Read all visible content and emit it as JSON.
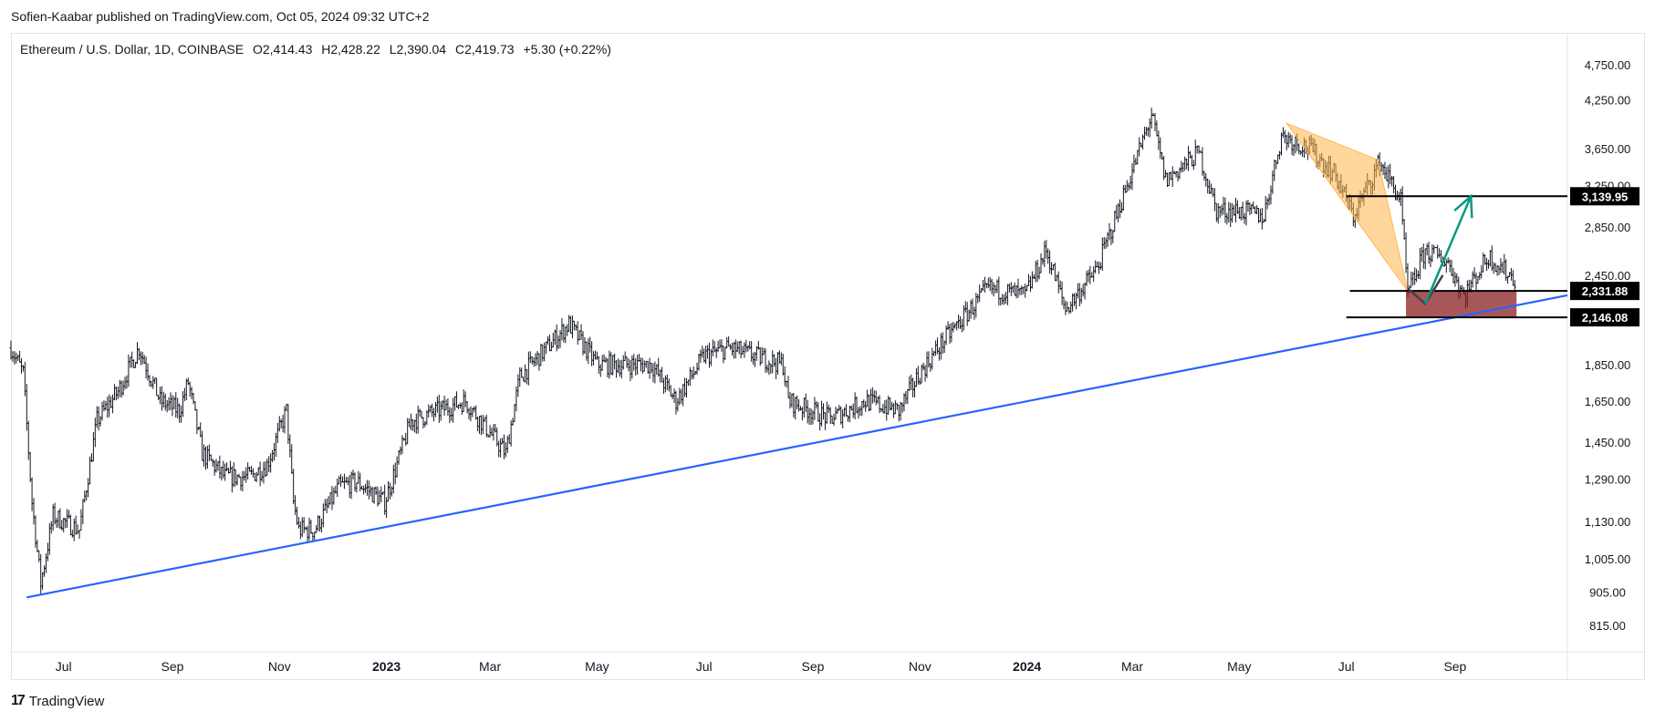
{
  "publisher_line": "Sofien-Kaabar published on TradingView.com, Oct 05, 2024 09:32 UTC+2",
  "footer": {
    "brand": "TradingView",
    "icon": "tradingview-logo-icon"
  },
  "legend": {
    "symbol": "Ethereum / U.S. Dollar, 1D, COINBASE",
    "open": "O2,414.43",
    "high": "H2,428.22",
    "low": "L2,390.04",
    "close": "C2,419.73",
    "change": "+5.30 (+0.22%)"
  },
  "chart_data": {
    "type": "ohlc",
    "title": "Ethereum / U.S. Dollar, 1D, COINBASE",
    "ylim": [
      750,
      4900
    ],
    "y_scale": "log",
    "y_ticks": [
      "4,750.00",
      "4,250.00",
      "3,650.00",
      "3,250.00",
      "2,850.00",
      "2,450.00",
      "1,850.00",
      "1,650.00",
      "1,450.00",
      "1,290.00",
      "1,130.00",
      "1,005.00",
      "905.00",
      "815.00"
    ],
    "x_ticks": [
      {
        "label": "Jul",
        "date": "2022-07-01",
        "bold": false
      },
      {
        "label": "Sep",
        "date": "2022-09-01",
        "bold": false
      },
      {
        "label": "Nov",
        "date": "2022-11-01",
        "bold": false
      },
      {
        "label": "2023",
        "date": "2023-01-01",
        "bold": true
      },
      {
        "label": "Mar",
        "date": "2023-03-01",
        "bold": false
      },
      {
        "label": "May",
        "date": "2023-05-01",
        "bold": false
      },
      {
        "label": "Jul",
        "date": "2023-07-01",
        "bold": false
      },
      {
        "label": "Sep",
        "date": "2023-09-01",
        "bold": false
      },
      {
        "label": "Nov",
        "date": "2023-11-01",
        "bold": false
      },
      {
        "label": "2024",
        "date": "2024-01-01",
        "bold": true
      },
      {
        "label": "Mar",
        "date": "2024-03-01",
        "bold": false
      },
      {
        "label": "May",
        "date": "2024-05-01",
        "bold": false
      },
      {
        "label": "Jul",
        "date": "2024-07-01",
        "bold": false
      },
      {
        "label": "Sep",
        "date": "2024-09-01",
        "bold": false
      }
    ],
    "x_range": [
      "2022-06-01",
      "2024-11-04"
    ],
    "price_path": [
      [
        "2022-06-01",
        1950
      ],
      [
        "2022-06-08",
        1800
      ],
      [
        "2022-06-13",
        1200
      ],
      [
        "2022-06-18",
        930
      ],
      [
        "2022-06-25",
        1150
      ],
      [
        "2022-07-10",
        1100
      ],
      [
        "2022-07-20",
        1550
      ],
      [
        "2022-08-01",
        1700
      ],
      [
        "2022-08-13",
        1950
      ],
      [
        "2022-08-25",
        1650
      ],
      [
        "2022-09-05",
        1600
      ],
      [
        "2022-09-10",
        1750
      ],
      [
        "2022-09-18",
        1400
      ],
      [
        "2022-10-01",
        1300
      ],
      [
        "2022-10-15",
        1300
      ],
      [
        "2022-10-25",
        1350
      ],
      [
        "2022-11-05",
        1600
      ],
      [
        "2022-11-09",
        1200
      ],
      [
        "2022-11-12",
        1100
      ],
      [
        "2022-11-21",
        1100
      ],
      [
        "2022-12-05",
        1260
      ],
      [
        "2022-12-15",
        1280
      ],
      [
        "2022-12-31",
        1200
      ],
      [
        "2023-01-15",
        1550
      ],
      [
        "2023-02-15",
        1650
      ],
      [
        "2023-03-10",
        1400
      ],
      [
        "2023-03-18",
        1780
      ],
      [
        "2023-04-15",
        2100
      ],
      [
        "2023-05-01",
        1850
      ],
      [
        "2023-06-01",
        1850
      ],
      [
        "2023-06-15",
        1650
      ],
      [
        "2023-07-01",
        1900
      ],
      [
        "2023-07-15",
        1950
      ],
      [
        "2023-08-15",
        1850
      ],
      [
        "2023-08-18",
        1650
      ],
      [
        "2023-09-11",
        1560
      ],
      [
        "2023-10-01",
        1650
      ],
      [
        "2023-10-20",
        1600
      ],
      [
        "2023-11-01",
        1800
      ],
      [
        "2023-11-15",
        2000
      ],
      [
        "2023-12-10",
        2350
      ],
      [
        "2023-12-31",
        2300
      ],
      [
        "2024-01-12",
        2650
      ],
      [
        "2024-01-23",
        2200
      ],
      [
        "2024-02-10",
        2500
      ],
      [
        "2024-03-01",
        3400
      ],
      [
        "2024-03-12",
        4050
      ],
      [
        "2024-03-20",
        3300
      ],
      [
        "2024-04-08",
        3600
      ],
      [
        "2024-04-18",
        3000
      ],
      [
        "2024-05-01",
        3000
      ],
      [
        "2024-05-15",
        2950
      ],
      [
        "2024-05-25",
        3800
      ],
      [
        "2024-06-10",
        3650
      ],
      [
        "2024-06-25",
        3350
      ],
      [
        "2024-07-05",
        2950
      ],
      [
        "2024-07-20",
        3500
      ],
      [
        "2024-08-01",
        3100
      ],
      [
        "2024-08-05",
        2300
      ],
      [
        "2024-08-15",
        2650
      ],
      [
        "2024-08-28",
        2550
      ],
      [
        "2024-09-06",
        2300
      ],
      [
        "2024-09-20",
        2600
      ],
      [
        "2024-10-05",
        2420
      ]
    ],
    "trendline": {
      "color": "#2962ff",
      "points": [
        [
          "2022-06-10",
          890
        ],
        [
          "2024-11-04",
          2300
        ]
      ]
    },
    "horizontal_levels": [
      {
        "value": 3139.95,
        "label": "3,139.95",
        "from": "2024-07-01"
      },
      {
        "value": 2331.88,
        "label": "2,331.88",
        "from": "2024-07-03"
      },
      {
        "value": 2146.08,
        "label": "2,146.08",
        "from": "2024-07-01"
      }
    ],
    "pattern_triangle": {
      "color": "#ffb74d",
      "points": [
        [
          "2024-05-28",
          3950
        ],
        [
          "2024-07-19",
          3520
        ],
        [
          "2024-08-05",
          2330
        ]
      ]
    },
    "zone_box": {
      "color": "#8b1f22",
      "from": "2024-08-04",
      "to": "2024-10-06",
      "low": 2146.08,
      "high": 2331.88
    },
    "zigzag": {
      "color": "#424242",
      "points": [
        [
          "2024-08-05",
          2350
        ],
        [
          "2024-08-15",
          2240
        ],
        [
          "2024-08-25",
          2450
        ]
      ]
    },
    "projection_arrow": {
      "color": "#089981",
      "points": [
        [
          "2024-08-15",
          2240
        ],
        [
          "2024-09-10",
          3139.95
        ]
      ]
    },
    "grid": false,
    "legend_position": "top-left"
  }
}
